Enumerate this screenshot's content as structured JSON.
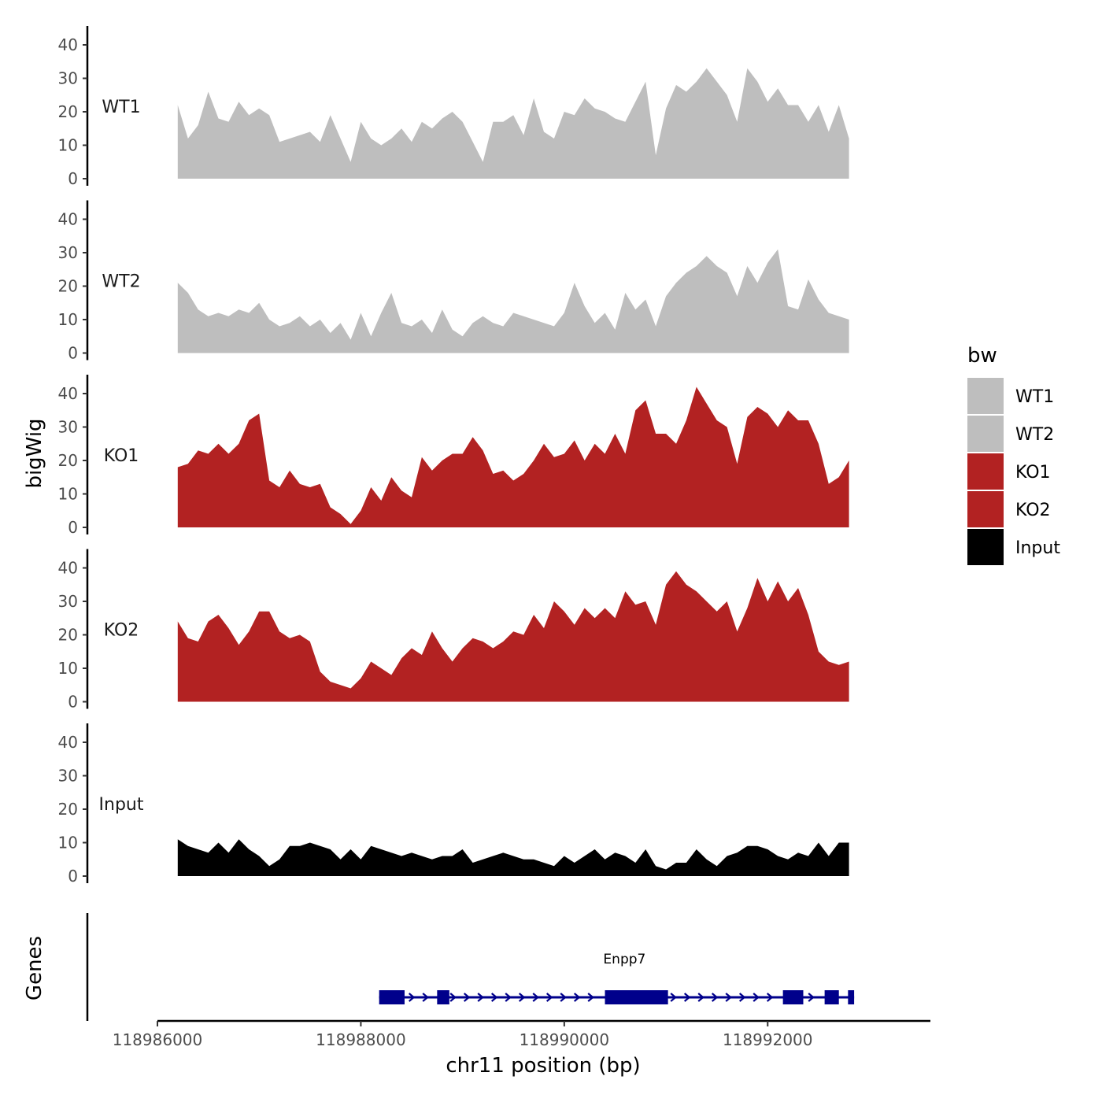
{
  "chart_data": {
    "type": "area",
    "xlabel": "chr11 position (bp)",
    "ylabel": "bigWig",
    "genes_label": "Genes",
    "xlim": [
      118986000,
      118993600
    ],
    "ylim": [
      0,
      45
    ],
    "x_ticks": [
      118986000,
      118988000,
      118990000,
      118992000
    ],
    "y_ticks": [
      0,
      10,
      20,
      30,
      40
    ],
    "legend_title": "bw",
    "series": [
      {
        "name": "WT1",
        "color": "#bebebe",
        "x": [
          118986200,
          118986300,
          118986400,
          118986500,
          118986600,
          118986700,
          118986800,
          118986900,
          118987000,
          118987100,
          118987200,
          118987300,
          118987400,
          118987500,
          118987600,
          118987700,
          118987800,
          118987900,
          118988000,
          118988100,
          118988200,
          118988300,
          118988400,
          118988500,
          118988600,
          118988700,
          118988800,
          118988900,
          118989000,
          118989100,
          118989200,
          118989300,
          118989400,
          118989500,
          118989600,
          118989700,
          118989800,
          118989900,
          118990000,
          118990100,
          118990200,
          118990300,
          118990400,
          118990500,
          118990600,
          118990700,
          118990800,
          118990900,
          118991000,
          118991100,
          118991200,
          118991300,
          118991400,
          118991500,
          118991600,
          118991700,
          118991800,
          118991900,
          118992000,
          118992100,
          118992200,
          118992300,
          118992400,
          118992500,
          118992600,
          118992700,
          118992800
        ],
        "values": [
          22,
          12,
          16,
          26,
          18,
          17,
          23,
          19,
          21,
          19,
          11,
          12,
          13,
          14,
          11,
          19,
          12,
          5,
          17,
          12,
          10,
          12,
          15,
          11,
          17,
          15,
          18,
          20,
          17,
          11,
          5,
          17,
          17,
          19,
          13,
          24,
          14,
          12,
          20,
          19,
          24,
          21,
          20,
          18,
          17,
          23,
          29,
          7,
          21,
          28,
          26,
          29,
          33,
          29,
          25,
          17,
          33,
          29,
          23,
          27,
          22,
          22,
          17,
          22,
          14,
          22,
          12
        ]
      },
      {
        "name": "WT2",
        "color": "#bebebe",
        "x": [
          118986200,
          118986300,
          118986400,
          118986500,
          118986600,
          118986700,
          118986800,
          118986900,
          118987000,
          118987100,
          118987200,
          118987300,
          118987400,
          118987500,
          118987600,
          118987700,
          118987800,
          118987900,
          118988000,
          118988100,
          118988200,
          118988300,
          118988400,
          118988500,
          118988600,
          118988700,
          118988800,
          118988900,
          118989000,
          118989100,
          118989200,
          118989300,
          118989400,
          118989500,
          118989600,
          118989700,
          118989800,
          118989900,
          118990000,
          118990100,
          118990200,
          118990300,
          118990400,
          118990500,
          118990600,
          118990700,
          118990800,
          118990900,
          118991000,
          118991100,
          118991200,
          118991300,
          118991400,
          118991500,
          118991600,
          118991700,
          118991800,
          118991900,
          118992000,
          118992100,
          118992200,
          118992300,
          118992400,
          118992500,
          118992600,
          118992700,
          118992800
        ],
        "values": [
          21,
          18,
          13,
          11,
          12,
          11,
          13,
          12,
          15,
          10,
          8,
          9,
          11,
          8,
          10,
          6,
          9,
          4,
          12,
          5,
          12,
          18,
          9,
          8,
          10,
          6,
          13,
          7,
          5,
          9,
          11,
          9,
          8,
          12,
          11,
          10,
          9,
          8,
          12,
          21,
          14,
          9,
          12,
          7,
          18,
          13,
          16,
          8,
          17,
          21,
          24,
          26,
          29,
          26,
          24,
          17,
          26,
          21,
          27,
          31,
          14,
          13,
          22,
          16,
          12,
          11,
          10
        ]
      },
      {
        "name": "KO1",
        "color": "#b22222",
        "x": [
          118986200,
          118986300,
          118986400,
          118986500,
          118986600,
          118986700,
          118986800,
          118986900,
          118987000,
          118987100,
          118987200,
          118987300,
          118987400,
          118987500,
          118987600,
          118987700,
          118987800,
          118987900,
          118988000,
          118988100,
          118988200,
          118988300,
          118988400,
          118988500,
          118988600,
          118988700,
          118988800,
          118988900,
          118989000,
          118989100,
          118989200,
          118989300,
          118989400,
          118989500,
          118989600,
          118989700,
          118989800,
          118989900,
          118990000,
          118990100,
          118990200,
          118990300,
          118990400,
          118990500,
          118990600,
          118990700,
          118990800,
          118990900,
          118991000,
          118991100,
          118991200,
          118991300,
          118991400,
          118991500,
          118991600,
          118991700,
          118991800,
          118991900,
          118992000,
          118992100,
          118992200,
          118992300,
          118992400,
          118992500,
          118992600,
          118992700,
          118992800
        ],
        "values": [
          18,
          19,
          23,
          22,
          25,
          22,
          25,
          32,
          34,
          14,
          12,
          17,
          13,
          12,
          13,
          6,
          4,
          1,
          5,
          12,
          8,
          15,
          11,
          9,
          21,
          17,
          20,
          22,
          22,
          27,
          23,
          16,
          17,
          14,
          16,
          20,
          25,
          21,
          22,
          26,
          20,
          25,
          22,
          28,
          22,
          35,
          38,
          28,
          28,
          25,
          32,
          42,
          37,
          32,
          30,
          19,
          33,
          36,
          34,
          30,
          35,
          32,
          32,
          25,
          13,
          15,
          20
        ]
      },
      {
        "name": "KO2",
        "color": "#b22222",
        "x": [
          118986200,
          118986300,
          118986400,
          118986500,
          118986600,
          118986700,
          118986800,
          118986900,
          118987000,
          118987100,
          118987200,
          118987300,
          118987400,
          118987500,
          118987600,
          118987700,
          118987800,
          118987900,
          118988000,
          118988100,
          118988200,
          118988300,
          118988400,
          118988500,
          118988600,
          118988700,
          118988800,
          118988900,
          118989000,
          118989100,
          118989200,
          118989300,
          118989400,
          118989500,
          118989600,
          118989700,
          118989800,
          118989900,
          118990000,
          118990100,
          118990200,
          118990300,
          118990400,
          118990500,
          118990600,
          118990700,
          118990800,
          118990900,
          118991000,
          118991100,
          118991200,
          118991300,
          118991400,
          118991500,
          118991600,
          118991700,
          118991800,
          118991900,
          118992000,
          118992100,
          118992200,
          118992300,
          118992400,
          118992500,
          118992600,
          118992700,
          118992800
        ],
        "values": [
          24,
          19,
          18,
          24,
          26,
          22,
          17,
          21,
          27,
          27,
          21,
          19,
          20,
          18,
          9,
          6,
          5,
          4,
          7,
          12,
          10,
          8,
          13,
          16,
          14,
          21,
          16,
          12,
          16,
          19,
          18,
          16,
          18,
          21,
          20,
          26,
          22,
          30,
          27,
          23,
          28,
          25,
          28,
          25,
          33,
          29,
          30,
          23,
          35,
          39,
          35,
          33,
          30,
          27,
          30,
          21,
          28,
          37,
          30,
          36,
          30,
          34,
          26,
          15,
          12,
          11,
          12
        ]
      },
      {
        "name": "Input",
        "color": "#000000",
        "x": [
          118986200,
          118986300,
          118986400,
          118986500,
          118986600,
          118986700,
          118986800,
          118986900,
          118987000,
          118987100,
          118987200,
          118987300,
          118987400,
          118987500,
          118987600,
          118987700,
          118987800,
          118987900,
          118988000,
          118988100,
          118988200,
          118988300,
          118988400,
          118988500,
          118988600,
          118988700,
          118988800,
          118988900,
          118989000,
          118989100,
          118989200,
          118989300,
          118989400,
          118989500,
          118989600,
          118989700,
          118989800,
          118989900,
          118990000,
          118990100,
          118990200,
          118990300,
          118990400,
          118990500,
          118990600,
          118990700,
          118990800,
          118990900,
          118991000,
          118991100,
          118991200,
          118991300,
          118991400,
          118991500,
          118991600,
          118991700,
          118991800,
          118991900,
          118992000,
          118992100,
          118992200,
          118992300,
          118992400,
          118992500,
          118992600,
          118992700,
          118992800
        ],
        "values": [
          11,
          9,
          8,
          7,
          10,
          7,
          11,
          8,
          6,
          3,
          5,
          9,
          9,
          10,
          9,
          8,
          5,
          8,
          5,
          9,
          8,
          7,
          6,
          7,
          6,
          5,
          6,
          6,
          8,
          4,
          5,
          6,
          7,
          6,
          5,
          5,
          4,
          3,
          6,
          4,
          6,
          8,
          5,
          7,
          6,
          4,
          8,
          3,
          2,
          4,
          4,
          8,
          5,
          3,
          6,
          7,
          9,
          9,
          8,
          6,
          5,
          7,
          6,
          10,
          6,
          10,
          10
        ]
      }
    ],
    "genes": [
      {
        "name": "Enpp7",
        "start": 118988180,
        "end": 118992850,
        "strand": "+",
        "exons": [
          [
            118988180,
            118988430
          ],
          [
            118988750,
            118988870
          ],
          [
            118990400,
            118991020
          ],
          [
            118992150,
            118992350
          ],
          [
            118992560,
            118992700
          ],
          [
            118992790,
            118992850
          ]
        ]
      }
    ]
  }
}
